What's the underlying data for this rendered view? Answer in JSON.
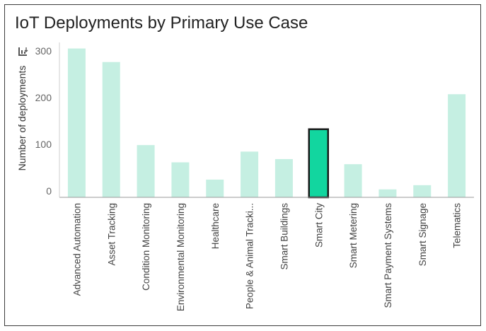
{
  "chart_data": {
    "type": "bar",
    "title": "IoT Deployments by Primary Use Case",
    "xlabel": "",
    "ylabel": "Number of deployments",
    "ylim": [
      -14,
      318
    ],
    "yticks": [
      0,
      100,
      200,
      300
    ],
    "grid": false,
    "categories": [
      "Advanced Automation",
      "Asset Tracking",
      "Condition Monitoring",
      "Environmental Monitoring",
      "Healthcare",
      "People & Animal Tracki...",
      "Smart Buildings",
      "Smart City",
      "Smart Metering",
      "Smart Payment Systems",
      "Smart Signage",
      "Telematics"
    ],
    "values": [
      305,
      276,
      98,
      61,
      24,
      84,
      68,
      132,
      57,
      3,
      12,
      207
    ],
    "highlighted_category": "Smart City",
    "colors": {
      "bar": "#c5efe2",
      "highlight": "#12d69f",
      "highlight_border": "#1a1a1a"
    }
  },
  "toolbar": {
    "sort_icon": "sort-icon"
  }
}
